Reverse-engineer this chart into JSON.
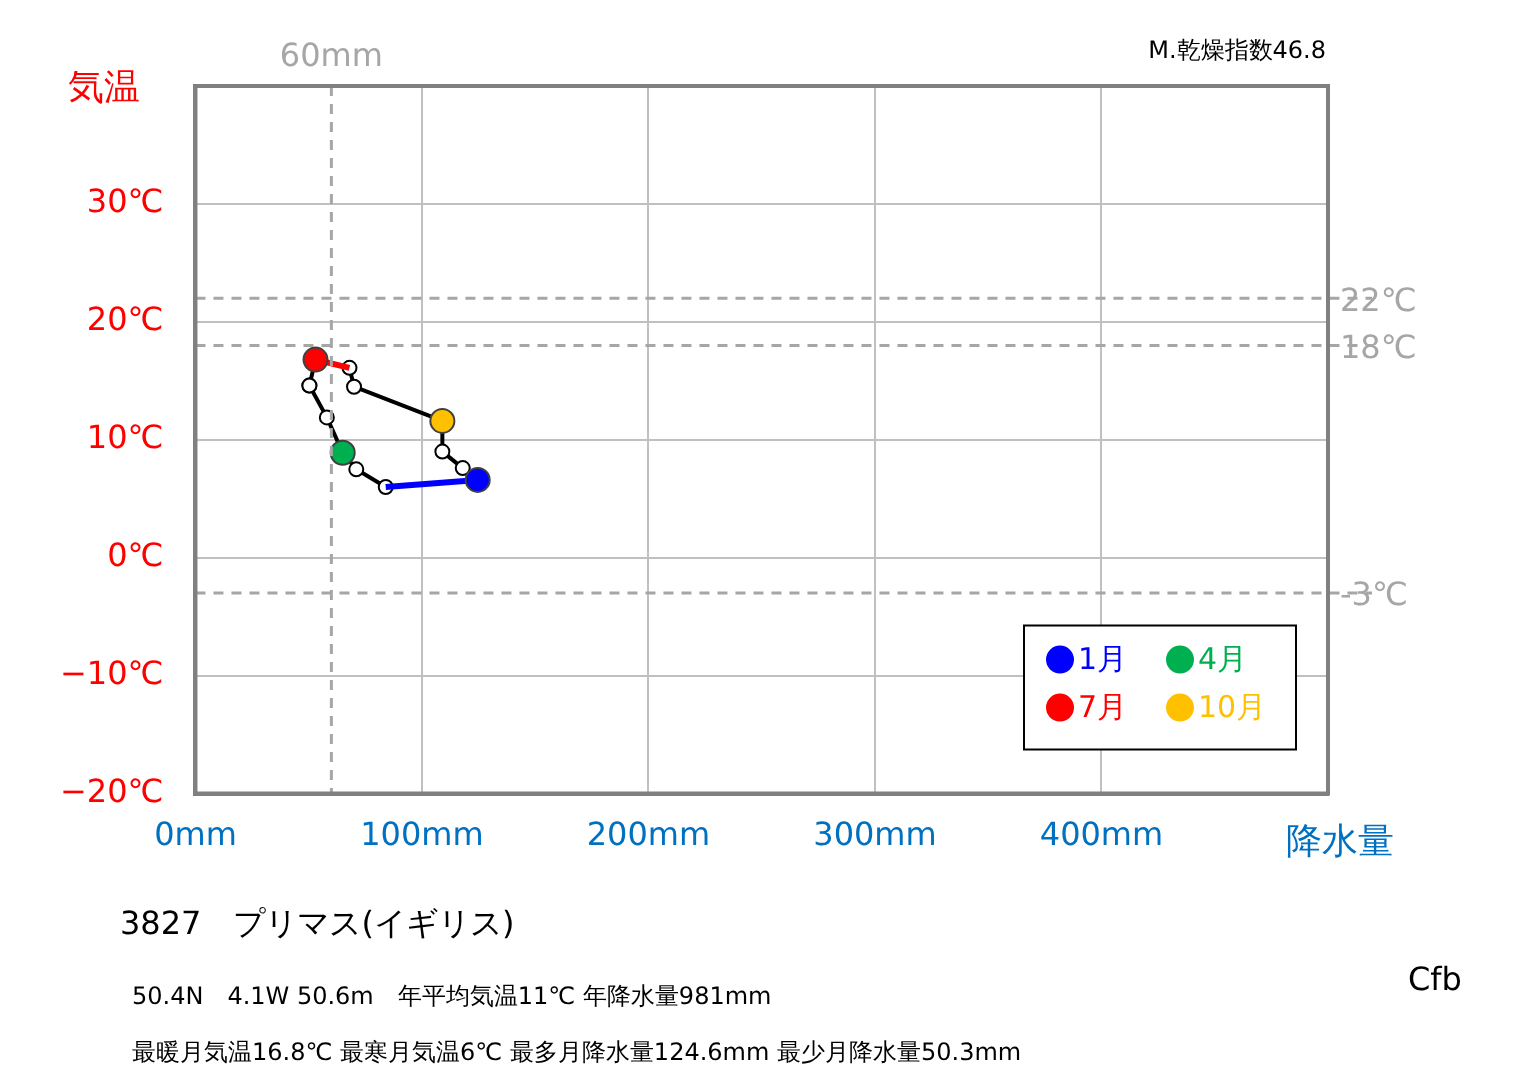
{
  "chart_data": {
    "type": "line",
    "title": "3827　プリマス(イギリス)",
    "ylabel": "気温",
    "xlabel": "降水量",
    "annotations": [
      "M.乾燥指数46.8",
      "50.4N　4.1W 50.6m　年平均気温11℃ 年降水量981mm",
      "最暖月気温16.8℃ 最寒月気温6℃ 最多月降水量124.6mm 最少月降水量50.3mm",
      "Cfb"
    ],
    "xlim": [
      0,
      500
    ],
    "xticks": [
      {
        "value": 0,
        "label": "0mm"
      },
      {
        "value": 100,
        "label": "100mm"
      },
      {
        "value": 200,
        "label": "200mm"
      },
      {
        "value": 300,
        "label": "300mm"
      },
      {
        "value": 400,
        "label": "400mm"
      },
      {
        "value": 500,
        "label": null
      }
    ],
    "ylim": [
      -20,
      40
    ],
    "yticks": [
      {
        "value": -20,
        "label": "−20℃"
      },
      {
        "value": -10,
        "label": "−10℃"
      },
      {
        "value": 0,
        "label": "0℃"
      },
      {
        "value": 10,
        "label": "10℃"
      },
      {
        "value": 20,
        "label": "20℃"
      },
      {
        "value": 30,
        "label": "30℃"
      },
      {
        "value": 40,
        "label": null
      }
    ],
    "grid": true,
    "legend": "bottom right",
    "marker": "circle",
    "line_style": "solid",
    "series": [
      {
        "color": "#000000",
        "x": [
          50.3,
          53,
          68,
          70,
          109,
          109,
          118,
          124.6
        ],
        "values": [
          14.6,
          16.8,
          16.1,
          14.5,
          11.6,
          9.0,
          7.6,
          6.6
        ]
      },
      {
        "color": "#000000",
        "x": [
          50.3,
          58,
          65,
          71,
          84
        ],
        "values": [
          14.6,
          11.9,
          8.9,
          7.5,
          6.0
        ]
      },
      {
        "color": "#0000ff",
        "marker": "none",
        "x": [
          84,
          124.6
        ],
        "values": [
          6.0,
          6.6
        ]
      },
      {
        "color": "#ff0000",
        "marker": "none",
        "x": [
          53,
          68
        ],
        "values": [
          16.8,
          16.1
        ]
      },
      {
        "type": "scatter",
        "name": "1月",
        "color": "#0000ff",
        "x": [
          124.6
        ],
        "values": [
          6.6
        ]
      },
      {
        "type": "scatter",
        "name": "4月",
        "color": "#00b050",
        "x": [
          65
        ],
        "values": [
          8.9
        ]
      },
      {
        "type": "scatter",
        "name": "7月",
        "color": "#ff0000",
        "x": [
          53
        ],
        "values": [
          16.8
        ]
      },
      {
        "type": "scatter",
        "name": "10月",
        "color": "#ffc000",
        "x": [
          109
        ],
        "values": [
          11.6
        ]
      }
    ],
    "ref_lines": [
      {
        "axis": "x",
        "value": 60,
        "label": "60mm",
        "color": "#a6a6a6",
        "line_style": "dashed"
      },
      {
        "axis": "y",
        "value": 22,
        "label": "22℃",
        "color": "#a6a6a6",
        "line_style": "dashed"
      },
      {
        "axis": "y",
        "value": 18,
        "label": "18℃",
        "color": "#a6a6a6",
        "line_style": "dashed"
      },
      {
        "axis": "y",
        "value": -3,
        "label": "-3℃",
        "color": "#a6a6a6",
        "line_style": "dashed"
      }
    ]
  }
}
